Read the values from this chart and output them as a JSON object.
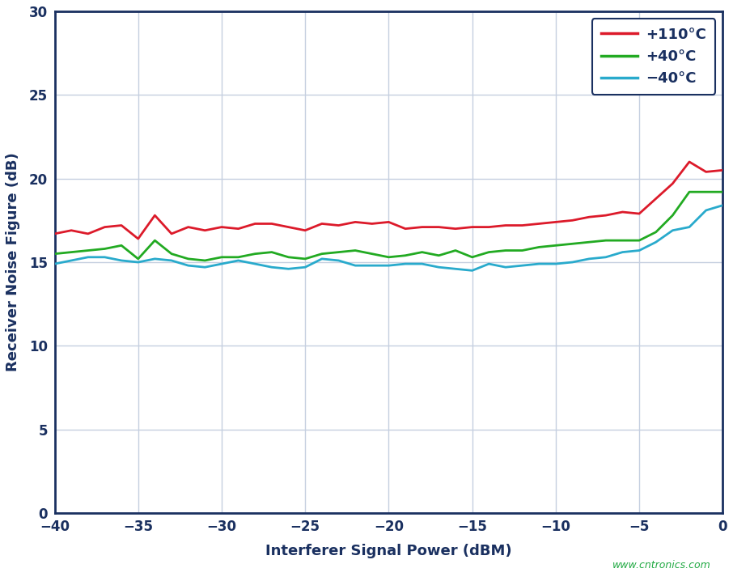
{
  "xlabel": "Interferer Signal Power (dBM)",
  "ylabel": "Receiver Noise Figure (dB)",
  "watermark": "www.cntronics.com",
  "xlim": [
    -40,
    0
  ],
  "ylim": [
    0,
    30
  ],
  "xticks": [
    -40,
    -35,
    -30,
    -25,
    -20,
    -15,
    -10,
    -5,
    0
  ],
  "yticks": [
    0,
    5,
    10,
    15,
    20,
    25,
    30
  ],
  "legend": [
    "+110°C",
    "+40°C",
    "−40°C"
  ],
  "colors": [
    "#dc1a2a",
    "#22aa22",
    "#29aacc"
  ],
  "background": "#ffffff",
  "grid_color": "#c5cfe0",
  "axis_color": "#1a3060",
  "spine_color": "#1a3060",
  "x_data": [
    -40,
    -39,
    -38,
    -37,
    -36,
    -35,
    -34,
    -33,
    -32,
    -31,
    -30,
    -29,
    -28,
    -27,
    -26,
    -25,
    -24,
    -23,
    -22,
    -21,
    -20,
    -19,
    -18,
    -17,
    -16,
    -15,
    -14,
    -13,
    -12,
    -11,
    -10,
    -9,
    -8,
    -7,
    -6,
    -5,
    -4,
    -3,
    -2,
    -1,
    0
  ],
  "y_110": [
    16.7,
    16.9,
    16.7,
    17.1,
    17.2,
    16.4,
    17.8,
    16.7,
    17.1,
    16.9,
    17.1,
    17.0,
    17.3,
    17.3,
    17.1,
    16.9,
    17.3,
    17.2,
    17.4,
    17.3,
    17.4,
    17.0,
    17.1,
    17.1,
    17.0,
    17.1,
    17.1,
    17.2,
    17.2,
    17.3,
    17.4,
    17.5,
    17.7,
    17.8,
    18.0,
    17.9,
    18.8,
    19.7,
    21.0,
    20.4,
    20.5
  ],
  "y_40": [
    15.5,
    15.6,
    15.7,
    15.8,
    16.0,
    15.2,
    16.3,
    15.5,
    15.2,
    15.1,
    15.3,
    15.3,
    15.5,
    15.6,
    15.3,
    15.2,
    15.5,
    15.6,
    15.7,
    15.5,
    15.3,
    15.4,
    15.6,
    15.4,
    15.7,
    15.3,
    15.6,
    15.7,
    15.7,
    15.9,
    16.0,
    16.1,
    16.2,
    16.3,
    16.3,
    16.3,
    16.8,
    17.8,
    19.2,
    19.2,
    19.2
  ],
  "y_n40": [
    14.9,
    15.1,
    15.3,
    15.3,
    15.1,
    15.0,
    15.2,
    15.1,
    14.8,
    14.7,
    14.9,
    15.1,
    14.9,
    14.7,
    14.6,
    14.7,
    15.2,
    15.1,
    14.8,
    14.8,
    14.8,
    14.9,
    14.9,
    14.7,
    14.6,
    14.5,
    14.9,
    14.7,
    14.8,
    14.9,
    14.9,
    15.0,
    15.2,
    15.3,
    15.6,
    15.7,
    16.2,
    16.9,
    17.1,
    18.1,
    18.4
  ]
}
